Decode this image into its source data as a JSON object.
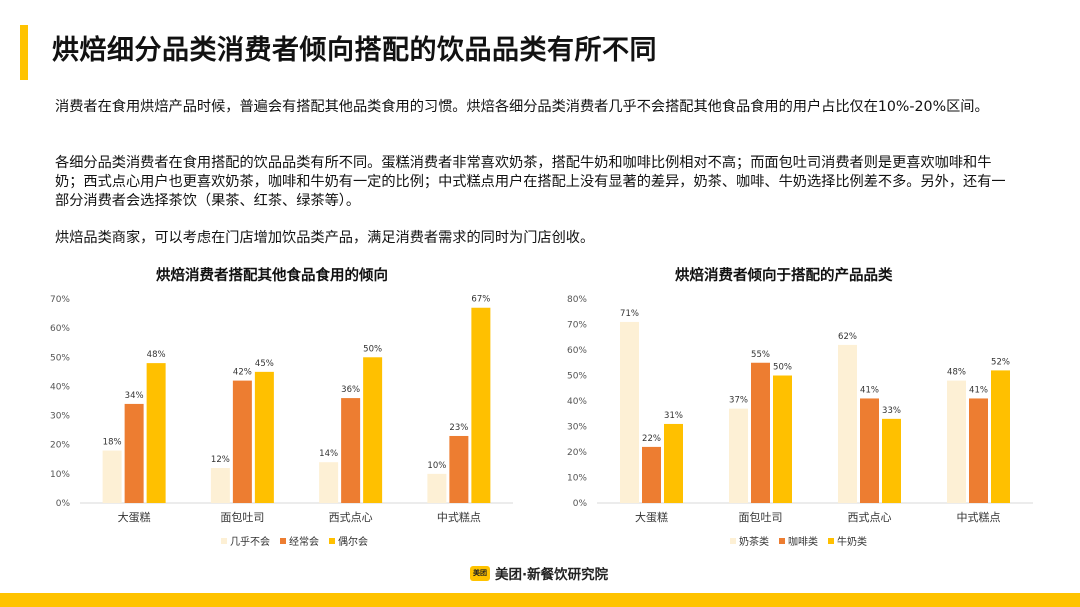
{
  "page": {
    "title": "烘焙细分品类消费者倾向搭配的饮品品类有所不同",
    "paragraphs": [
      "消费者在食用烘焙产品时候，普遍会有搭配其他品类食用的习惯。烘焙各细分品类消费者几乎不会搭配其他食品食用的用户占比仅在10%-20%区间。",
      "各细分品类消费者在食用搭配的饮品品类有所不同。蛋糕消费者非常喜欢奶茶，搭配牛奶和咖啡比例相对不高；而面包吐司消费者则是更喜欢咖啡和牛奶；西式点心用户也更喜欢奶茶，咖啡和牛奶有一定的比例；中式糕点用户在搭配上没有显著的差异，奶茶、咖啡、牛奶选择比例差不多。另外，还有一部分消费者会选择茶饮（果茶、红茶、绿茶等）。",
      "烘焙品类商家，可以考虑在门店增加饮品类产品，满足消费者需求的同时为门店创收。"
    ]
  },
  "footer": {
    "logo_mark": "美团",
    "brand": "美团·新餐饮研究院",
    "accent_color": "#FFC300"
  },
  "chart_data": [
    {
      "type": "bar",
      "title": "烘焙消费者搭配其他食品食用的倾向",
      "categories": [
        "大蛋糕",
        "面包吐司",
        "西式点心",
        "中式糕点"
      ],
      "series": [
        {
          "name": "几乎不会",
          "color": "#FDF0D5",
          "values": [
            18,
            12,
            14,
            10
          ]
        },
        {
          "name": "经常会",
          "color": "#ED7D31",
          "values": [
            34,
            42,
            36,
            23
          ]
        },
        {
          "name": "偶尔会",
          "color": "#FFC000",
          "values": [
            48,
            45,
            50,
            67
          ]
        }
      ],
      "ylim": [
        0,
        70
      ],
      "yticks": [
        "0%",
        "10%",
        "20%",
        "30%",
        "40%",
        "50%",
        "60%",
        "70%"
      ],
      "value_suffix": "%",
      "legend": "bottom"
    },
    {
      "type": "bar",
      "title": "烘焙消费者倾向于搭配的产品品类",
      "categories": [
        "大蛋糕",
        "面包吐司",
        "西式点心",
        "中式糕点"
      ],
      "series": [
        {
          "name": "奶茶类",
          "color": "#FDF0D5",
          "values": [
            71,
            37,
            62,
            48
          ]
        },
        {
          "name": "咖啡类",
          "color": "#ED7D31",
          "values": [
            22,
            55,
            41,
            41
          ]
        },
        {
          "name": "牛奶类",
          "color": "#FFC000",
          "values": [
            31,
            50,
            33,
            52
          ]
        }
      ],
      "ylim": [
        0,
        80
      ],
      "yticks": [
        "0%",
        "10%",
        "20%",
        "30%",
        "40%",
        "50%",
        "60%",
        "70%",
        "80%"
      ],
      "value_suffix": "%",
      "legend": "bottom"
    }
  ]
}
